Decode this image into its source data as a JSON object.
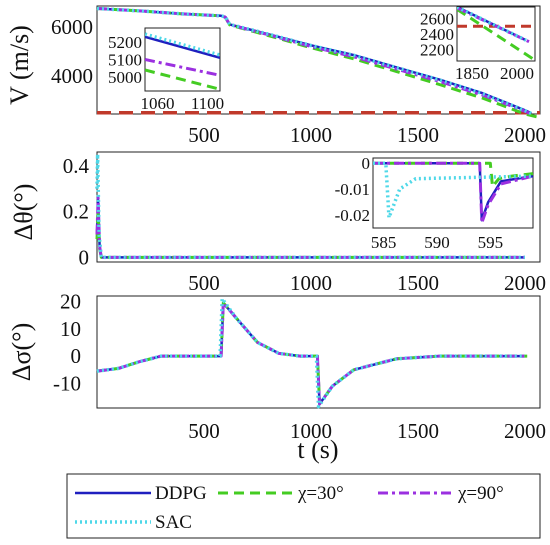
{
  "chart_data": [
    {
      "type": "line",
      "panel": "velocity",
      "ylabel": "V (m/s)",
      "xlim": [
        0,
        2070
      ],
      "ylim": [
        2450,
        6850
      ],
      "xticks": [
        "500",
        "1000",
        "1500",
        "2000"
      ],
      "yticks": [
        "4000",
        "6000"
      ],
      "threshold": {
        "value": 2500,
        "color": "#c0392b"
      },
      "series": [
        {
          "name": "DDPG",
          "color": "#1f1fbf",
          "style": "solid",
          "x": [
            0,
            200,
            400,
            580,
            600,
            620,
            800,
            1000,
            1200,
            1400,
            1600,
            1800,
            1900,
            2000,
            2030
          ],
          "y": [
            6750,
            6650,
            6530,
            6450,
            6400,
            6100,
            5700,
            5250,
            4850,
            4350,
            3850,
            3300,
            2950,
            2600,
            2480
          ]
        },
        {
          "name": "χ=30°",
          "color": "#44cc22",
          "style": "dash",
          "x": [
            0,
            200,
            400,
            580,
            600,
            620,
            800,
            1000,
            1200,
            1400,
            1600,
            1800,
            1900,
            2000,
            2070
          ],
          "y": [
            6750,
            6650,
            6530,
            6450,
            6380,
            6080,
            5650,
            5150,
            4700,
            4180,
            3650,
            3100,
            2780,
            2450,
            2300
          ]
        },
        {
          "name": "χ=90°",
          "color": "#9b30e0",
          "style": "dashdot",
          "x": [
            0,
            200,
            400,
            580,
            600,
            620,
            800,
            1000,
            1200,
            1400,
            1600,
            1800,
            1900,
            2000,
            2030
          ],
          "y": [
            6750,
            6650,
            6530,
            6450,
            6390,
            6090,
            5680,
            5200,
            4780,
            4280,
            3780,
            3230,
            2900,
            2560,
            2450
          ]
        },
        {
          "name": "SAC",
          "color": "#4fd8e8",
          "style": "dot",
          "x": [
            0,
            200,
            400,
            580,
            600,
            620,
            800,
            1000,
            1200,
            1400,
            1600,
            1800,
            1900,
            2000,
            2030
          ],
          "y": [
            6750,
            6650,
            6530,
            6450,
            6400,
            6100,
            5710,
            5240,
            4840,
            4340,
            3840,
            3290,
            2940,
            2590,
            2470
          ]
        }
      ],
      "insets": [
        {
          "xlim": [
            1050,
            1110
          ],
          "ylim": [
            4920,
            5280
          ],
          "xticks": [
            "1060",
            "1100"
          ],
          "yticks": [
            "5000",
            "5100",
            "5200"
          ],
          "series": [
            {
              "name": "DDPG",
              "x": [
                1050,
                1110
              ],
              "y": [
                5230,
                5110
              ]
            },
            {
              "name": "χ=30°",
              "x": [
                1050,
                1110
              ],
              "y": [
                5040,
                4930
              ]
            },
            {
              "name": "χ=90°",
              "x": [
                1050,
                1110
              ],
              "y": [
                5100,
                5010
              ]
            },
            {
              "name": "SAC",
              "x": [
                1050,
                1110
              ],
              "y": [
                5245,
                5125
              ]
            }
          ]
        },
        {
          "xlim": [
            1800,
            2060
          ],
          "ylim": [
            2050,
            2750
          ],
          "xticks": [
            "1850",
            "2000"
          ],
          "yticks": [
            "2200",
            "2400",
            "2600"
          ],
          "threshold": 2500,
          "series": [
            {
              "name": "DDPG",
              "x": [
                1800,
                2030
              ],
              "y": [
                2750,
                2320
              ]
            },
            {
              "name": "χ=30°",
              "x": [
                1800,
                2060
              ],
              "y": [
                2720,
                2060
              ]
            },
            {
              "name": "χ=90°",
              "x": [
                1800,
                2040
              ],
              "y": [
                2740,
                2300
              ]
            },
            {
              "name": "SAC",
              "x": [
                1800,
                2030
              ],
              "y": [
                2750,
                2320
              ]
            }
          ]
        }
      ]
    },
    {
      "type": "line",
      "panel": "delta-theta",
      "ylabel": "Δθ(°)",
      "xlim": [
        0,
        2070
      ],
      "ylim": [
        -0.02,
        0.46
      ],
      "xticks": [
        "500",
        "1000",
        "1500",
        "2000"
      ],
      "yticks": [
        "0",
        "0.2",
        "0.4"
      ],
      "series": [
        {
          "name": "DDPG",
          "x": [
            0,
            5,
            12,
            20,
            2000
          ],
          "y": [
            0.1,
            0.25,
            0.05,
            0,
            0
          ]
        },
        {
          "name": "χ=30°",
          "x": [
            0,
            5,
            12,
            20,
            2000
          ],
          "y": [
            0.08,
            0.2,
            0.04,
            0,
            0
          ]
        },
        {
          "name": "χ=90°",
          "x": [
            0,
            5,
            12,
            20,
            2000
          ],
          "y": [
            0.1,
            0.26,
            0.05,
            0,
            0
          ]
        },
        {
          "name": "SAC",
          "x": [
            0,
            3,
            10,
            20,
            2000
          ],
          "y": [
            0.3,
            0.45,
            0.1,
            0,
            0
          ]
        }
      ],
      "inset": {
        "xlim": [
          584,
          599
        ],
        "ylim": [
          -0.025,
          0.002
        ],
        "xticks": [
          "585",
          "590",
          "595"
        ],
        "yticks": [
          "0",
          "-0.01",
          "-0.02"
        ],
        "series": [
          {
            "name": "DDPG",
            "x": [
              584,
              594,
              594.2,
              594.8,
              596,
              599
            ],
            "y": [
              0,
              0,
              -0.022,
              -0.015,
              -0.007,
              -0.005
            ]
          },
          {
            "name": "χ=30°",
            "x": [
              584,
              595,
              595.2,
              595.8,
              597,
              599
            ],
            "y": [
              0,
              0,
              -0.009,
              -0.006,
              -0.005,
              -0.004
            ]
          },
          {
            "name": "χ=90°",
            "x": [
              584,
              594,
              594.2,
              594.8,
              596,
              599
            ],
            "y": [
              0,
              0,
              -0.023,
              -0.016,
              -0.008,
              -0.005
            ]
          },
          {
            "name": "SAC",
            "x": [
              584,
              585.2,
              585.5,
              586.5,
              588,
              599
            ],
            "y": [
              0,
              0,
              -0.021,
              -0.01,
              -0.006,
              -0.005
            ]
          }
        ]
      }
    },
    {
      "type": "line",
      "panel": "delta-sigma",
      "ylabel": "Δσ(°)",
      "xlabel": "t (s)",
      "xlim": [
        0,
        2070
      ],
      "ylim": [
        -19,
        22
      ],
      "xticks": [
        "500",
        "1000",
        "1500",
        "2000"
      ],
      "yticks": [
        "20",
        "10",
        "0",
        "-10"
      ],
      "series": [
        {
          "name": "DDPG",
          "x": [
            0,
            100,
            200,
            300,
            400,
            500,
            580,
            590,
            650,
            750,
            850,
            950,
            1030,
            1040,
            1100,
            1200,
            1400,
            1600,
            1800,
            2000
          ],
          "y": [
            -5.5,
            -4.5,
            -2,
            0,
            0,
            0,
            0,
            19.5,
            14,
            5,
            1,
            0,
            0,
            -17.5,
            -11,
            -5,
            -1,
            0,
            0,
            0
          ]
        },
        {
          "name": "χ=30°",
          "x": [
            0,
            100,
            200,
            300,
            400,
            500,
            580,
            590,
            650,
            750,
            850,
            950,
            1030,
            1040,
            1100,
            1200,
            1400,
            1600,
            1800,
            2010
          ],
          "y": [
            -5.5,
            -4.5,
            -2,
            0,
            0,
            0,
            0,
            19.5,
            14,
            5,
            1,
            0,
            0,
            -17.5,
            -11,
            -5,
            -1,
            0,
            0,
            0
          ]
        },
        {
          "name": "χ=90°",
          "x": [
            0,
            100,
            200,
            300,
            400,
            500,
            580,
            590,
            650,
            750,
            850,
            950,
            1030,
            1040,
            1100,
            1200,
            1400,
            1600,
            1800,
            2000
          ],
          "y": [
            -5.5,
            -4.5,
            -2,
            0,
            0,
            0,
            0,
            19.5,
            14,
            5,
            1,
            0,
            0,
            -17.5,
            -11,
            -5,
            -1,
            0,
            0,
            0
          ]
        },
        {
          "name": "SAC",
          "x": [
            0,
            100,
            200,
            300,
            400,
            500,
            575,
            585,
            650,
            750,
            850,
            950,
            1025,
            1035,
            1100,
            1200,
            1400,
            1600,
            1800,
            2000
          ],
          "y": [
            -5.5,
            -4.5,
            -2,
            0,
            0,
            0,
            0,
            21,
            14,
            5,
            1,
            0,
            0,
            -18.5,
            -11,
            -5,
            -1,
            0,
            0,
            0
          ]
        }
      ]
    }
  ],
  "legend": {
    "placement": "bottom",
    "entries": [
      {
        "label": "DDPG",
        "color": "#1f1fbf",
        "style": "solid"
      },
      {
        "label": "χ=30°",
        "color": "#44cc22",
        "style": "dash"
      },
      {
        "label": "χ=90°",
        "color": "#9b30e0",
        "style": "dashdot"
      },
      {
        "label": "SAC",
        "color": "#4fd8e8",
        "style": "dot"
      }
    ]
  }
}
